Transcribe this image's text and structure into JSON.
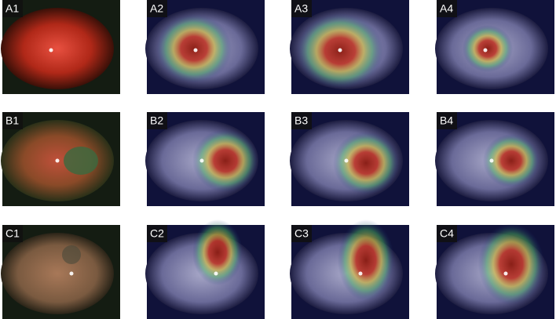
{
  "panels": [
    [
      "A1",
      "A2",
      "A3",
      "A4"
    ],
    [
      "B1",
      "B2",
      "B3",
      "B4"
    ],
    [
      "C1",
      "C2",
      "C3",
      "C4"
    ]
  ]
}
